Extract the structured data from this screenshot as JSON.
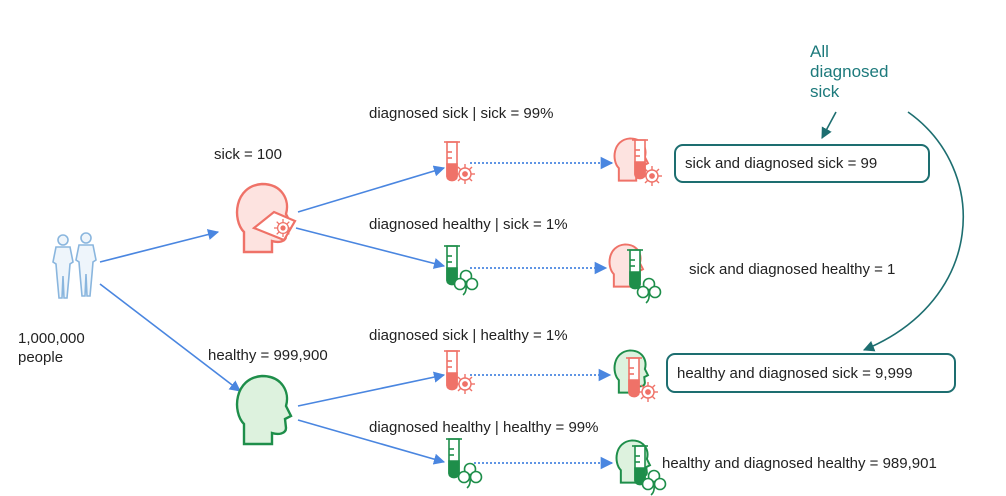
{
  "population": {
    "count": "1,000,000",
    "unit": "people"
  },
  "groups": {
    "sick": "sick = 100",
    "healthy": "healthy = 999,900"
  },
  "conditionals": {
    "sick_dx_sick": "diagnosed sick | sick = 99%",
    "sick_dx_healthy": "diagnosed healthy | sick = 1%",
    "healthy_dx_sick": "diagnosed sick | healthy = 1%",
    "healthy_dx_healthy": "diagnosed healthy | healthy = 99%"
  },
  "outcomes": {
    "sick_dx_sick": "sick and diagnosed sick = 99",
    "sick_dx_healthy": "sick and diagnosed healthy = 1",
    "healthy_dx_sick": "healthy and diagnosed sick = 9,999",
    "healthy_dx_healthy": "healthy and diagnosed healthy = 989,901"
  },
  "annotation": {
    "lines": [
      "All",
      "diagnosed",
      "sick"
    ]
  },
  "icons": {
    "people": "people-icon",
    "sick_head": "sick-head-icon",
    "healthy_head": "healthy-head-icon",
    "test_tube_sick": "test-tube-virus-icon",
    "test_tube_healthy": "test-tube-clover-icon"
  },
  "colors": {
    "arrow": "#4a86e0",
    "sick": "#ef7268",
    "sick_fill": "#fde3e0",
    "healthy": "#1e8e4a",
    "healthy_fill": "#ddf2de",
    "people": "#8ab6de",
    "accent": "#1d6e70"
  }
}
